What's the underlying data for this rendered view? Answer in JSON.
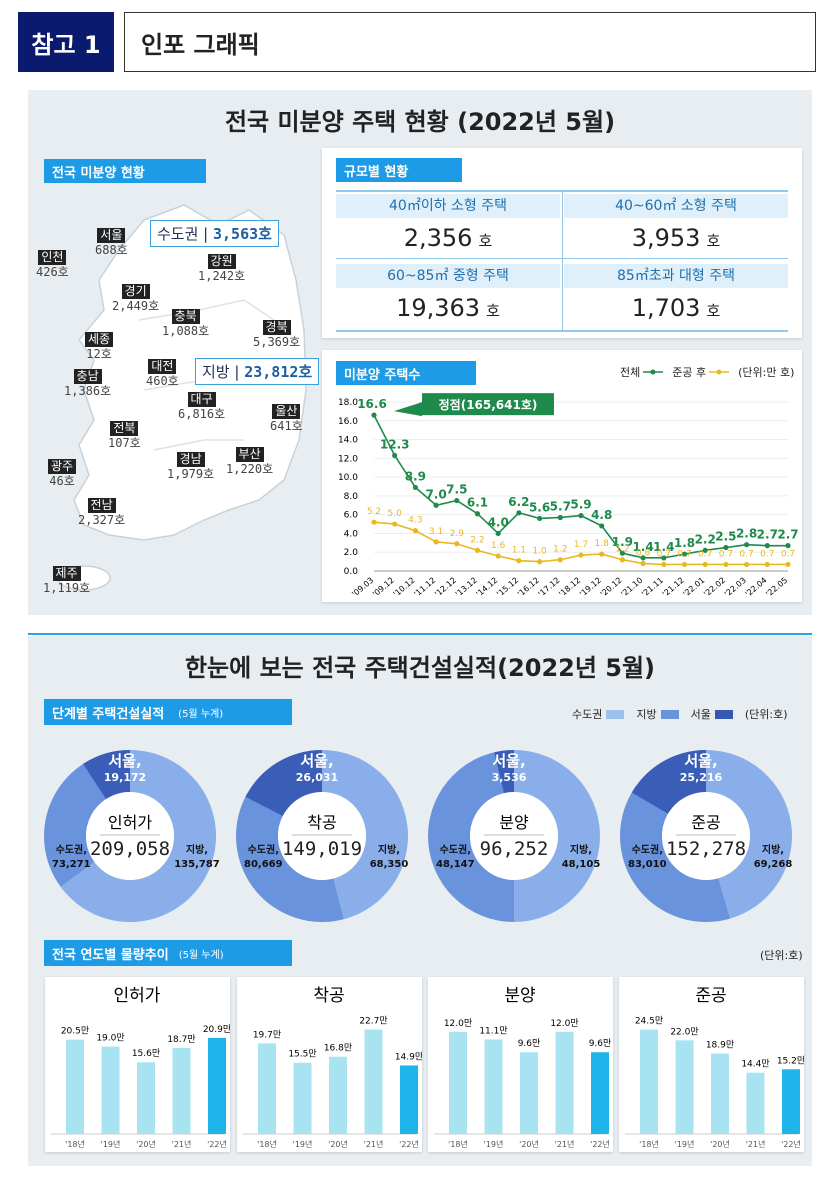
{
  "header": {
    "tag": "참고 1",
    "title": "인포  그래픽"
  },
  "unsold": {
    "title": "전국 미분양 주택 현황 (2022년 5월)",
    "map_tab": "전국 미분양 현황",
    "capital": {
      "label": "수도권",
      "value": "3,563호"
    },
    "local": {
      "label": "지방",
      "value": "23,812호"
    },
    "regions": [
      {
        "name": "서울",
        "value": "688호"
      },
      {
        "name": "인천",
        "value": "426호"
      },
      {
        "name": "강원",
        "value": "1,242호"
      },
      {
        "name": "경기",
        "value": "2,449호"
      },
      {
        "name": "충북",
        "value": "1,088호"
      },
      {
        "name": "경북",
        "value": "5,369호"
      },
      {
        "name": "세종",
        "value": "12호"
      },
      {
        "name": "대전",
        "value": "460호"
      },
      {
        "name": "충남",
        "value": "1,386호"
      },
      {
        "name": "대구",
        "value": "6,816호"
      },
      {
        "name": "울산",
        "value": "641호"
      },
      {
        "name": "전북",
        "value": "107호"
      },
      {
        "name": "경남",
        "value": "1,979호"
      },
      {
        "name": "부산",
        "value": "1,220호"
      },
      {
        "name": "광주",
        "value": "46호"
      },
      {
        "name": "전남",
        "value": "2,327호"
      },
      {
        "name": "제주",
        "value": "1,119호"
      }
    ],
    "size_tab": "규모별 현황",
    "sizes": [
      {
        "label": "40㎡이하 소형 주택",
        "value": "2,356",
        "unit": "호"
      },
      {
        "label": "40~60㎡ 소형 주택",
        "value": "3,953",
        "unit": "호"
      },
      {
        "label": "60~85㎡ 중형 주택",
        "value": "19,363",
        "unit": "호"
      },
      {
        "label": "85㎡초과 대형 주택",
        "value": "1,703",
        "unit": "호"
      }
    ],
    "trend_tab": "미분양 주택수",
    "legend_total": "전체",
    "legend_after": "준공 후",
    "unit_note": "(단위:만 호)",
    "peak_label": "정점(165,641호)"
  },
  "construction": {
    "title": "한눈에 보는 전국 주택건설실적(2022년 5월)",
    "stage_tab": "단계별 주택건설실적",
    "stage_tab_sub": "(5월 누계)",
    "legend": [
      "수도권",
      "지방",
      "서울"
    ],
    "unit": "(단위:호)",
    "donuts": [
      {
        "name": "인허가",
        "total": "209,058",
        "capital": "73,271",
        "local": "135,787",
        "seoul": "19,172"
      },
      {
        "name": "착공",
        "total": "149,019",
        "capital": "80,669",
        "local": "68,350",
        "seoul": "26,031"
      },
      {
        "name": "분양",
        "total": "96,252",
        "capital": "48,147",
        "local": "48,105",
        "seoul": "3,536"
      },
      {
        "name": "준공",
        "total": "152,278",
        "capital": "83,010",
        "local": "69,268",
        "seoul": "25,216"
      }
    ],
    "donut_labels": {
      "seoul": "서울,",
      "capital": "수도권,",
      "local": "지방,"
    },
    "yearly_tab": "전국 연도별 물량추이",
    "yearly_tab_sub": "(5월 누계)",
    "yearly_unit": "(단위:호)"
  },
  "chart_data": [
    {
      "type": "line",
      "title": "미분양 주택수",
      "ylabel": "만 호",
      "ylim": [
        0,
        18
      ],
      "yticks": [
        "18.0",
        "16.0",
        "14.0",
        "12.0",
        "10.0",
        "8.0",
        "6.0",
        "4.0",
        "2.0",
        "0.0"
      ],
      "categories": [
        "'09.03",
        "'09.12",
        "'10.12",
        "'11.12",
        "'12.12",
        "'13.12",
        "'14.12",
        "'15.12",
        "'16.12",
        "'17.12",
        "'18.12",
        "'19.12",
        "'20.12",
        "'21.10",
        "'21.11",
        "'21.12",
        "'22.01",
        "'22.02",
        "'22.03",
        "'22.04",
        "'22.05"
      ],
      "series": [
        {
          "name": "전체",
          "color": "#1e8a4c",
          "values": [
            16.6,
            12.3,
            8.9,
            7.0,
            7.5,
            6.1,
            4.0,
            6.2,
            5.6,
            5.7,
            5.9,
            4.8,
            1.9,
            1.4,
            1.4,
            1.8,
            2.2,
            2.5,
            2.8,
            2.7,
            2.7
          ]
        },
        {
          "name": "준공 후",
          "color": "#e9b820",
          "values": [
            5.2,
            5.0,
            4.3,
            3.1,
            2.9,
            2.2,
            1.6,
            1.1,
            1.0,
            1.2,
            1.7,
            1.8,
            1.2,
            0.8,
            0.7,
            0.7,
            0.7,
            0.7,
            0.7,
            0.7,
            0.7
          ]
        }
      ]
    },
    {
      "type": "bar",
      "title": "인허가",
      "categories": [
        "'18년",
        "'19년",
        "'20년",
        "'21년",
        "'22년"
      ],
      "values": [
        20.5,
        19.0,
        15.6,
        18.7,
        20.9
      ],
      "labels": [
        "20.5만",
        "19.0만",
        "15.6만",
        "18.7만",
        "20.9만"
      ],
      "ylim": [
        0,
        25
      ]
    },
    {
      "type": "bar",
      "title": "착공",
      "categories": [
        "'18년",
        "'19년",
        "'20년",
        "'21년",
        "'22년"
      ],
      "values": [
        19.7,
        15.5,
        16.8,
        22.7,
        14.9
      ],
      "labels": [
        "19.7만",
        "15.5만",
        "16.8만",
        "22.7만",
        "14.9만"
      ],
      "ylim": [
        0,
        25
      ]
    },
    {
      "type": "bar",
      "title": "분양",
      "categories": [
        "'18년",
        "'19년",
        "'20년",
        "'21년",
        "'22년"
      ],
      "values": [
        12.0,
        11.1,
        9.6,
        12.0,
        9.6
      ],
      "labels": [
        "12.0만",
        "11.1만",
        "9.6만",
        "12.0만",
        "9.6만"
      ],
      "ylim": [
        0,
        13.5
      ]
    },
    {
      "type": "bar",
      "title": "준공",
      "categories": [
        "'18년",
        "'19년",
        "'20년",
        "'21년",
        "'22년"
      ],
      "values": [
        24.5,
        22.0,
        18.9,
        14.4,
        15.2
      ],
      "labels": [
        "24.5만",
        "22.0만",
        "18.9만",
        "14.4만",
        "15.2만"
      ],
      "ylim": [
        0,
        27
      ]
    },
    {
      "type": "pie",
      "title": "단계별 주택건설실적",
      "series": [
        {
          "name": "인허가",
          "capital": 73271,
          "local": 135787,
          "seoul": 19172
        },
        {
          "name": "착공",
          "capital": 80669,
          "local": 68350,
          "seoul": 26031
        },
        {
          "name": "분양",
          "capital": 48147,
          "local": 48105,
          "seoul": 3536
        },
        {
          "name": "준공",
          "capital": 83010,
          "local": 69268,
          "seoul": 25216
        }
      ]
    }
  ]
}
